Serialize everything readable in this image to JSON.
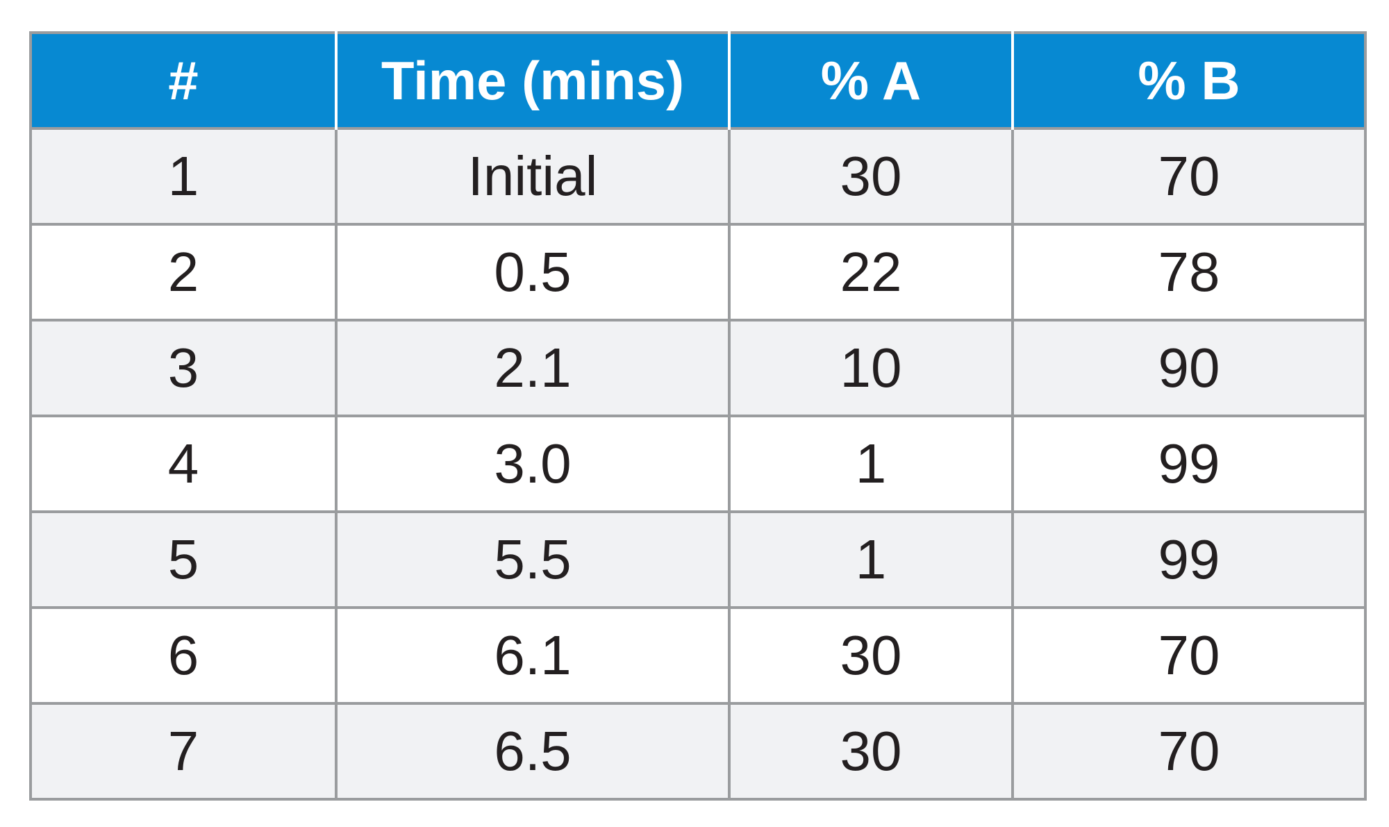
{
  "table": {
    "headers": [
      "#",
      "Time (mins)",
      "% A",
      "% B"
    ],
    "rows": [
      [
        "1",
        "Initial",
        "30",
        "70"
      ],
      [
        "2",
        "0.5",
        "22",
        "78"
      ],
      [
        "3",
        "2.1",
        "10",
        "90"
      ],
      [
        "4",
        "3.0",
        "1",
        "99"
      ],
      [
        "5",
        "5.5",
        "1",
        "99"
      ],
      [
        "6",
        "6.1",
        "30",
        "70"
      ],
      [
        "7",
        "6.5",
        "30",
        "70"
      ]
    ],
    "colors": {
      "header_bg": "#0789d2",
      "header_text": "#ffffff",
      "border": "#9a9c9e",
      "row_shaded": "#f1f2f4",
      "row_plain": "#ffffff",
      "cell_text": "#231f20"
    }
  }
}
